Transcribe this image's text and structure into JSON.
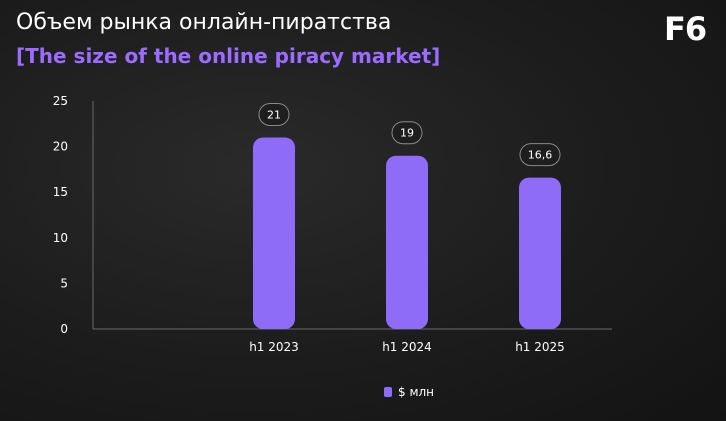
{
  "header": {
    "title": "Объем рынка онлайн-пиратства",
    "subtitle": "[The size of the online piracy market]",
    "logo": "F6"
  },
  "colors": {
    "accent": "#9b6cff",
    "bar": "#8e6cf7",
    "background": "#1c1c1c"
  },
  "chart_data": {
    "type": "bar",
    "categories": [
      "h1 2023",
      "h1 2024",
      "h1 2025"
    ],
    "series": [
      {
        "name": "$ млн",
        "values": [
          21,
          19,
          16.6
        ],
        "labels": [
          "21",
          "19",
          "16,6"
        ]
      }
    ],
    "ylim": [
      0,
      25
    ],
    "yticks": [
      "0",
      "5",
      "10",
      "15",
      "20",
      "25"
    ],
    "grid": false,
    "legend": "bottom-center"
  }
}
